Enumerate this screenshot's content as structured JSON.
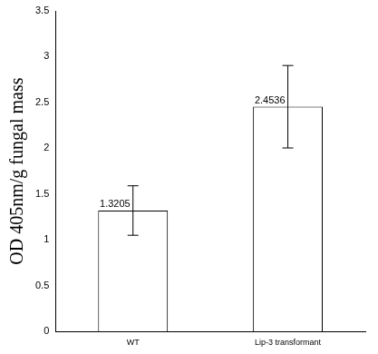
{
  "chart_data": {
    "type": "bar",
    "y_label": "OD 405nm/g fungal mass",
    "categories": [
      "WT",
      "Lip-3 transformant"
    ],
    "values": [
      1.3205,
      2.4536
    ],
    "errors": [
      0.27,
      0.45
    ],
    "color": "#ffffff",
    "ylim": [
      0,
      3.5
    ],
    "yticks": [
      0,
      0.5,
      1,
      1.5,
      2,
      2.5,
      3,
      3.5
    ],
    "grid": false,
    "data_labels": true
  }
}
